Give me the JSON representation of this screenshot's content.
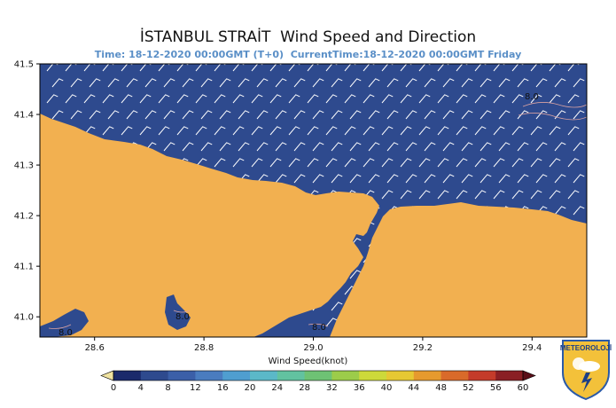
{
  "map": {
    "title": "İSTANBUL STRAİT  Wind Speed and Direction",
    "subtitle": "Time: 18-12-2020 00:00GMT (T+0)  CurrentTime:18-12-2020 00:00GMT Friday",
    "lon_range": [
      28.5,
      29.5
    ],
    "lat_range": [
      40.96,
      41.5
    ],
    "x_ticks": [
      "28.6",
      "28.8",
      "29.0",
      "29.2",
      "29.4"
    ],
    "x_tick_values": [
      28.6,
      28.8,
      29.0,
      29.2,
      29.4
    ],
    "y_ticks": [
      "41.5",
      "41.4",
      "41.3",
      "41.2",
      "41.1",
      "41.0"
    ],
    "y_tick_values": [
      41.5,
      41.4,
      41.3,
      41.2,
      41.1,
      41.0
    ],
    "contour_labels": [
      "8.0",
      "8.0",
      "8.0",
      "8.0"
    ],
    "colors": {
      "sea": "#2e4a8e",
      "land": "#f2b050",
      "barb": "#ffffff",
      "contour": "#d9a2a2"
    }
  },
  "colorbar": {
    "label": "Wind Speed(knot)",
    "ticks": [
      "0",
      "4",
      "8",
      "12",
      "16",
      "20",
      "24",
      "28",
      "32",
      "36",
      "40",
      "44",
      "48",
      "52",
      "56",
      "60"
    ],
    "colors": [
      "#1b2a6b",
      "#2e4a8e",
      "#3b5fa8",
      "#4a7cbf",
      "#4f9ed0",
      "#5bb8c8",
      "#62c2a0",
      "#6ec274",
      "#9ccc4a",
      "#cdd93a",
      "#e6c833",
      "#e69a2e",
      "#d96a2a",
      "#c43b2a",
      "#8a1f24"
    ]
  },
  "logo": {
    "text": "METEOROLOJİ"
  }
}
